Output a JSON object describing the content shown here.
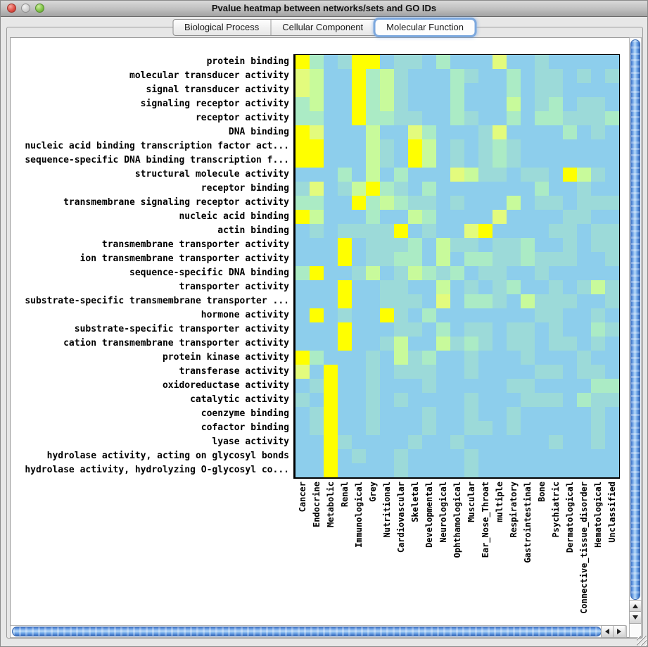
{
  "window": {
    "title": "Pvalue heatmap between networks/sets and GO IDs"
  },
  "tabs": [
    {
      "label": "Biological Process",
      "selected": false
    },
    {
      "label": "Cellular Component",
      "selected": false
    },
    {
      "label": "Molecular Function",
      "selected": true
    }
  ],
  "chart_data": {
    "type": "heatmap",
    "title": "Pvalue heatmap between networks/sets and GO IDs",
    "rows": [
      "protein binding",
      "molecular transducer activity",
      "signal transducer activity",
      "signaling receptor activity",
      "receptor activity",
      "DNA binding",
      "nucleic acid binding transcription factor act...",
      "sequence-specific DNA binding transcription f...",
      "structural molecule activity",
      "receptor binding",
      "transmembrane signaling receptor activity",
      "nucleic acid binding",
      "actin binding",
      "transmembrane transporter activity",
      "ion transmembrane transporter activity",
      "sequence-specific DNA binding",
      "transporter activity",
      "substrate-specific transmembrane transporter ...",
      "hormone activity",
      "substrate-specific transporter activity",
      "cation transmembrane transporter activity",
      "protein kinase activity",
      "transferase activity",
      "oxidoreductase activity",
      "catalytic activity",
      "coenzyme binding",
      "cofactor binding",
      "lyase activity",
      "hydrolase activity, acting on glycosyl bonds",
      "hydrolase activity, hydrolyzing O-glycosyl co..."
    ],
    "columns": [
      "Cancer",
      "Endocrine",
      "Metabolic",
      "Renal",
      "Immunological",
      "Grey",
      "Nutritional",
      "Cardiovascular",
      "Skeletal",
      "Developmental",
      "Neurological",
      "Ophthamological",
      "Muscular",
      "Ear_Nose_Throat",
      "multiple",
      "Respiratory",
      "Gastrointestinal",
      "Bone",
      "Psychiatric",
      "Dermatological",
      "Connective_tissue_disorder",
      "Hematological",
      "Unclassified"
    ],
    "palette": [
      "#8DCEEC",
      "#9CDAD9",
      "#ABEBC5",
      "#C8FA9B",
      "#E3FB7D",
      "#FFFF00"
    ],
    "value_scale": "0=low significance (blue) to 5=high significance (yellow)",
    "values": [
      "52015501102000400100000",
      "43005231000210020110101",
      "43005231000200020110000",
      "23005231000200030120110",
      "22005221100210020221112",
      "54000300420001400002010",
      "55000310530101210000000",
      "55000310530101210000000",
      "00020302000431101105310",
      "14013521020000000200100",
      "22005232110100030110111",
      "53000200320000400001100",
      "01011115010045000011011",
      "00050111203110112001011",
      "00050112203022112111001",
      "25001301321201100100000",
      "00050011003010120010131",
      "00050011104022103111001",
      "05010051020000000110010",
      "00050001102011011010021",
      "00050013003121011011010",
      "52000103120010001000100",
      "40500101110010000110110",
      "01500100010000011000022",
      "10500101000010001110211",
      "01500100010010010000010",
      "01500100010011010000010",
      "00510000100100000010010",
      "00501001000010000000000",
      "00500001000010000000000"
    ]
  }
}
